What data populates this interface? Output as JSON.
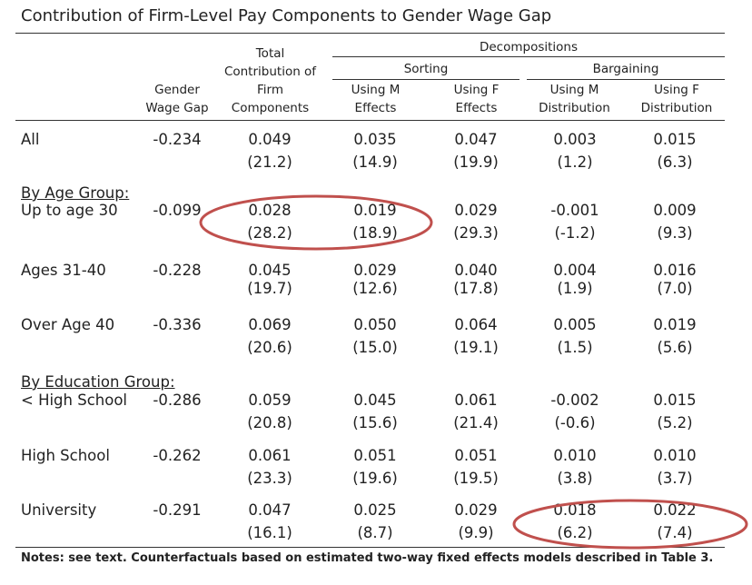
{
  "title": "Contribution of Firm-Level Pay Components to Gender Wage Gap",
  "headers": {
    "decompositions": "Decompositions",
    "sorting": "Sorting",
    "bargaining": "Bargaining",
    "gender_gap": [
      "Gender",
      "Wage Gap"
    ],
    "total": [
      "Total",
      "Contribution of",
      "Firm",
      "Components"
    ],
    "sort_m": [
      "Using M",
      "Effects"
    ],
    "sort_f": [
      "Using F",
      "Effects"
    ],
    "barg_m": [
      "Using M",
      "Distribution"
    ],
    "barg_f": [
      "Using F",
      "Distribution"
    ]
  },
  "group_labels": {
    "age": "By Age Group:",
    "education": "By Education Group:"
  },
  "rows": [
    {
      "label": "All",
      "gap": "-0.234",
      "vals": [
        "0.049",
        "0.035",
        "0.047",
        "0.003",
        "0.015"
      ],
      "pcts": [
        "(21.2)",
        "(14.9)",
        "(19.9)",
        "(1.2)",
        "(6.3)"
      ]
    },
    {
      "label": "Up to age 30",
      "gap": "-0.099",
      "vals": [
        "0.028",
        "0.019",
        "0.029",
        "-0.001",
        "0.009"
      ],
      "pcts": [
        "(28.2)",
        "(18.9)",
        "(29.3)",
        "(-1.2)",
        "(9.3)"
      ]
    },
    {
      "label": "Ages 31-40",
      "gap": "-0.228",
      "vals": [
        "0.045",
        "0.029",
        "0.040",
        "0.004",
        "0.016"
      ],
      "pcts": [
        "(19.7)",
        "(12.6)",
        "(17.8)",
        "(1.9)",
        "(7.0)"
      ]
    },
    {
      "label": "Over Age 40",
      "gap": "-0.336",
      "vals": [
        "0.069",
        "0.050",
        "0.064",
        "0.005",
        "0.019"
      ],
      "pcts": [
        "(20.6)",
        "(15.0)",
        "(19.1)",
        "(1.5)",
        "(5.6)"
      ]
    },
    {
      "label": "< High School",
      "gap": "-0.286",
      "vals": [
        "0.059",
        "0.045",
        "0.061",
        "-0.002",
        "0.015"
      ],
      "pcts": [
        "(20.8)",
        "(15.6)",
        "(21.4)",
        "(-0.6)",
        "(5.2)"
      ]
    },
    {
      "label": "High School",
      "gap": "-0.262",
      "vals": [
        "0.061",
        "0.051",
        "0.051",
        "0.010",
        "0.010"
      ],
      "pcts": [
        "(23.3)",
        "(19.6)",
        "(19.5)",
        "(3.8)",
        "(3.7)"
      ]
    },
    {
      "label": "University",
      "gap": "-0.291",
      "vals": [
        "0.047",
        "0.025",
        "0.029",
        "0.018",
        "0.022"
      ],
      "pcts": [
        "(16.1)",
        "(8.7)",
        "(9.9)",
        "(6.2)",
        "(7.4)"
      ]
    }
  ],
  "notes": "Notes: see text. Counterfactuals based on estimated two-way fixed effects models described in Table 3.",
  "colors": {
    "highlight": "#c0504d"
  }
}
